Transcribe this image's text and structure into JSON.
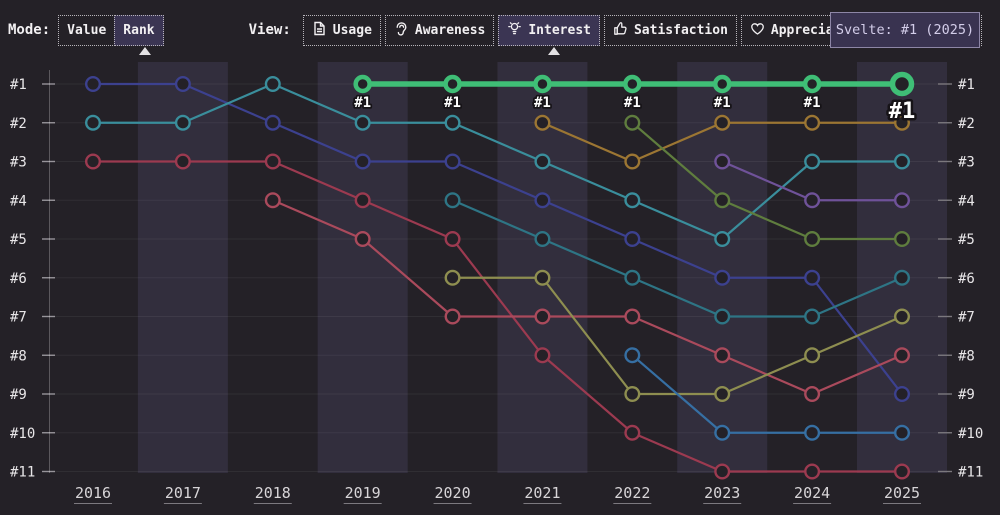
{
  "toolbar": {
    "mode_label": "Mode:",
    "modes": [
      {
        "label": "Value",
        "selected": false
      },
      {
        "label": "Rank",
        "selected": true
      }
    ],
    "view_label": "View:",
    "views": [
      {
        "label": "Usage",
        "icon": "document-icon",
        "selected": false
      },
      {
        "label": "Awareness",
        "icon": "ear-icon",
        "selected": false
      },
      {
        "label": "Interest",
        "icon": "lightbulb-icon",
        "selected": true
      },
      {
        "label": "Satisfaction",
        "icon": "thumbs-up-icon",
        "selected": false
      },
      {
        "label": "Appreciation",
        "icon": "heart-icon",
        "selected": false
      }
    ]
  },
  "tooltip": {
    "text": "Svelte: #1 (2025)"
  },
  "colors": {
    "background": "#242127",
    "band": "#322e3d",
    "highlight_green": "#3fbe76"
  },
  "chart_data": {
    "type": "line",
    "subtype": "bump-rank-chart",
    "x": [
      2016,
      2017,
      2018,
      2019,
      2020,
      2021,
      2022,
      2023,
      2024,
      2025
    ],
    "rank_labels": [
      "#1",
      "#2",
      "#3",
      "#4",
      "#5",
      "#6",
      "#7",
      "#8",
      "#9",
      "#10",
      "#11"
    ],
    "ylim": [
      1,
      11
    ],
    "grid": true,
    "banded_years": [
      2017,
      2019,
      2021,
      2023,
      2025
    ],
    "highlighted_series": "Svelte",
    "highlighted_point": {
      "year": 2025,
      "rank": 1
    },
    "point_label": "#1",
    "series": [
      {
        "id": "indigo",
        "color": "#3c418f",
        "points": [
          [
            2016,
            1
          ],
          [
            2017,
            1
          ],
          [
            2018,
            2
          ],
          [
            2019,
            3
          ],
          [
            2020,
            3
          ],
          [
            2021,
            4
          ],
          [
            2022,
            5
          ],
          [
            2023,
            6
          ],
          [
            2024,
            6
          ],
          [
            2025,
            9
          ]
        ]
      },
      {
        "id": "teal",
        "color": "#3a8e9c",
        "points": [
          [
            2016,
            2
          ],
          [
            2017,
            2
          ],
          [
            2018,
            1
          ],
          [
            2019,
            2
          ],
          [
            2020,
            2
          ],
          [
            2021,
            3
          ],
          [
            2022,
            4
          ],
          [
            2023,
            5
          ],
          [
            2024,
            3
          ],
          [
            2025,
            3
          ]
        ]
      },
      {
        "id": "crimson",
        "color": "#9c3a50",
        "points": [
          [
            2016,
            3
          ],
          [
            2017,
            3
          ],
          [
            2018,
            3
          ],
          [
            2019,
            4
          ],
          [
            2020,
            5
          ],
          [
            2021,
            8
          ],
          [
            2022,
            10
          ],
          [
            2023,
            11
          ],
          [
            2024,
            11
          ],
          [
            2025,
            11
          ]
        ]
      },
      {
        "id": "rose",
        "color": "#aa4a5c",
        "points": [
          [
            2018,
            4
          ],
          [
            2019,
            5
          ],
          [
            2020,
            7
          ],
          [
            2021,
            7
          ],
          [
            2022,
            7
          ],
          [
            2023,
            8
          ],
          [
            2024,
            9
          ],
          [
            2025,
            8
          ]
        ]
      },
      {
        "id": "dark-teal",
        "color": "#2e7585",
        "points": [
          [
            2020,
            4
          ],
          [
            2021,
            5
          ],
          [
            2022,
            6
          ],
          [
            2023,
            7
          ],
          [
            2024,
            7
          ],
          [
            2025,
            6
          ]
        ]
      },
      {
        "id": "olive",
        "color": "#8e8e50",
        "points": [
          [
            2020,
            6
          ],
          [
            2021,
            6
          ],
          [
            2022,
            9
          ],
          [
            2023,
            9
          ],
          [
            2024,
            8
          ],
          [
            2025,
            7
          ]
        ]
      },
      {
        "id": "amber",
        "color": "#9c7633",
        "points": [
          [
            2021,
            2
          ],
          [
            2022,
            3
          ],
          [
            2023,
            2
          ],
          [
            2024,
            2
          ],
          [
            2025,
            2
          ]
        ]
      },
      {
        "id": "moss",
        "color": "#5f7d3e",
        "points": [
          [
            2022,
            2
          ],
          [
            2023,
            4
          ],
          [
            2024,
            5
          ],
          [
            2025,
            5
          ]
        ]
      },
      {
        "id": "steel-blue",
        "color": "#366fa3",
        "points": [
          [
            2022,
            8
          ],
          [
            2023,
            10
          ],
          [
            2024,
            10
          ],
          [
            2025,
            10
          ]
        ]
      },
      {
        "id": "violet",
        "color": "#6f5299",
        "points": [
          [
            2023,
            3
          ],
          [
            2024,
            4
          ],
          [
            2025,
            4
          ]
        ]
      },
      {
        "id": "svelte",
        "name": "Svelte",
        "color": "#3fbe76",
        "highlight": true,
        "points": [
          [
            2019,
            1
          ],
          [
            2020,
            1
          ],
          [
            2021,
            1
          ],
          [
            2022,
            1
          ],
          [
            2023,
            1
          ],
          [
            2024,
            1
          ],
          [
            2025,
            1
          ]
        ],
        "point_labels": [
          "#1",
          "#1",
          "#1",
          "#1",
          "#1",
          "#1",
          "#1"
        ]
      }
    ]
  }
}
